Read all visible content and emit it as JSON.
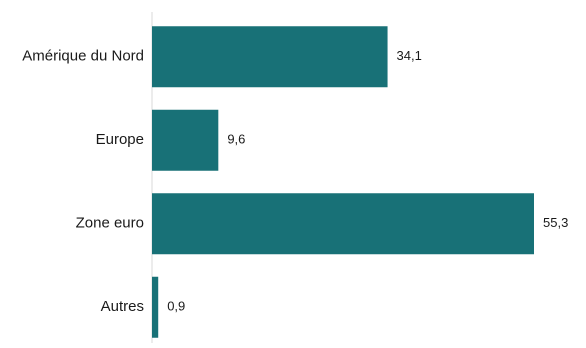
{
  "chart_data": {
    "type": "bar",
    "orientation": "horizontal",
    "title": "",
    "xlabel": "",
    "ylabel": "",
    "categories": [
      "Amérique du Nord",
      "Europe",
      "Zone euro",
      "Autres"
    ],
    "values": [
      34.1,
      9.6,
      55.3,
      0.9
    ],
    "value_labels": [
      "34,1",
      "9,6",
      "55,3",
      "0,9"
    ],
    "xlim": [
      0,
      55.3
    ],
    "grid": false,
    "legend": "none",
    "bar_color": "#187177",
    "axis_color": "#d9d9d9"
  }
}
